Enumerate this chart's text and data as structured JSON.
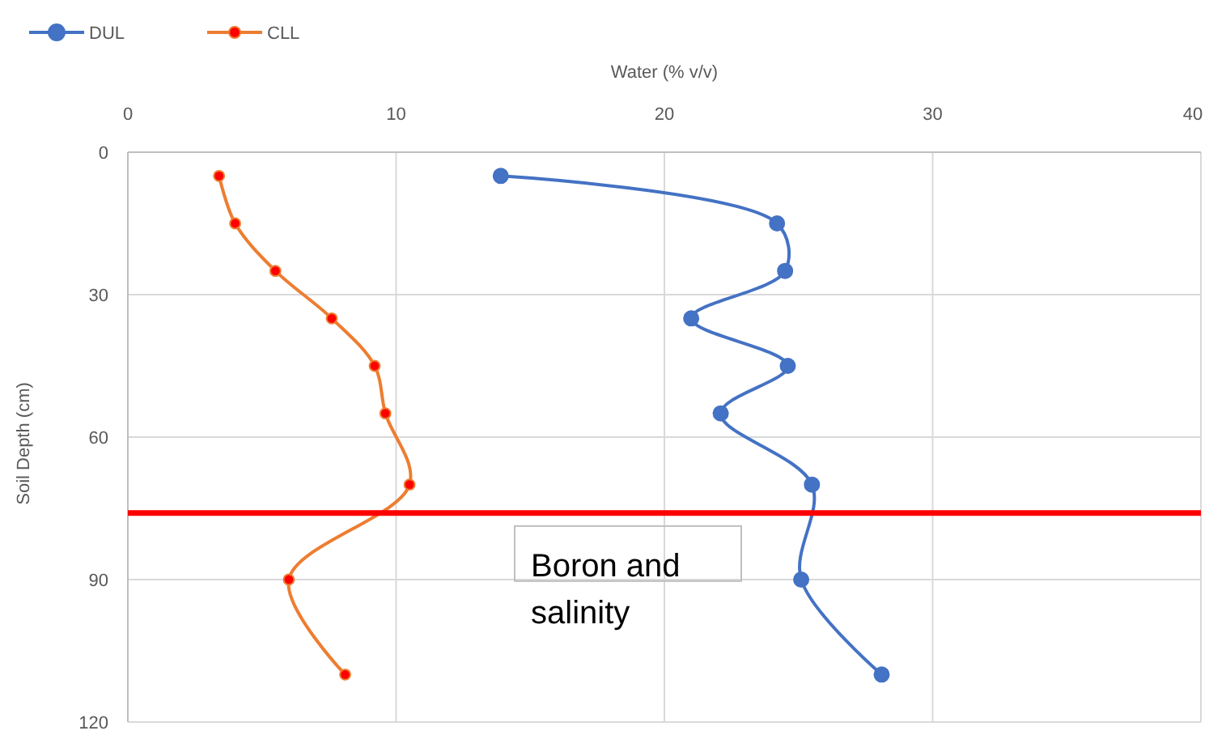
{
  "chart_data": {
    "type": "line",
    "xlabel": "Water (% v/v)",
    "ylabel": "Soil Depth (cm)",
    "xlim": [
      0,
      40
    ],
    "xticks": [
      0,
      10,
      20,
      30,
      40
    ],
    "ylim": [
      120,
      0
    ],
    "yticks": [
      0,
      30,
      60,
      90,
      120
    ],
    "grid": true,
    "legend": "top left",
    "marker": "circle",
    "line_style": "solid",
    "series": [
      {
        "name": "DUL",
        "color": "#4472c4",
        "x": [
          13.9,
          24.2,
          24.5,
          21.0,
          24.6,
          22.1,
          25.5,
          25.1,
          28.1
        ],
        "values": [
          5,
          15,
          25,
          35,
          45,
          55,
          70,
          90,
          110
        ]
      },
      {
        "name": "CLL",
        "color": "#ed7d31",
        "x": [
          3.4,
          4.0,
          5.5,
          7.6,
          9.2,
          9.6,
          10.5,
          6.0,
          8.1
        ],
        "values": [
          5,
          15,
          25,
          35,
          45,
          55,
          70,
          90,
          110
        ]
      }
    ],
    "ref_lines": [
      {
        "axis": "y",
        "value": 76,
        "color": "#ff0000"
      }
    ],
    "annotations": [
      "Boron and salinity"
    ]
  }
}
